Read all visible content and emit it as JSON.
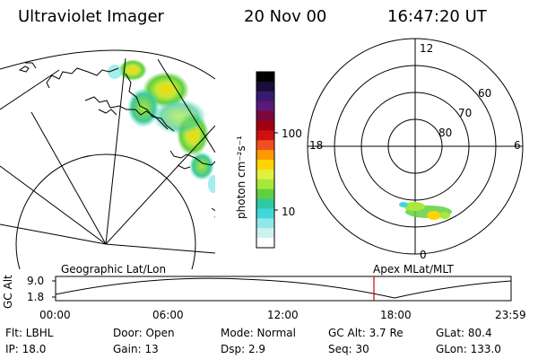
{
  "header": {
    "instrument": "Ultraviolet Imager",
    "date": "20 Nov 00",
    "time": "16:47:20 UT"
  },
  "colorbar": {
    "label": "photon cm⁻²s⁻¹",
    "ticks": [
      "100",
      "10"
    ],
    "colors": [
      "#000000",
      "#1a0d3a",
      "#3a1a6e",
      "#5a1a7a",
      "#7a0a3a",
      "#a00010",
      "#d01010",
      "#f05020",
      "#ff9a00",
      "#ffd400",
      "#e0f040",
      "#a8e838",
      "#60d040",
      "#30c8a0",
      "#40d8d8",
      "#90e8e8",
      "#d0f0f0",
      "#ffffff"
    ]
  },
  "polar_plot": {
    "mlt_labels": {
      "top": "12",
      "left": "18",
      "right": "6",
      "bottom": "0"
    },
    "lat_labels": [
      "60",
      "70",
      "80"
    ]
  },
  "timeline": {
    "left_label": "Geographic Lat/Lon",
    "right_label": "Apex MLat/MLT",
    "axis_label": "GC Alt",
    "y_ticks": [
      "9.0",
      "1.8"
    ],
    "x_ticks": [
      "00:00",
      "06:00",
      "12:00",
      "18:00",
      "23:59"
    ],
    "marker_color": "#d00000"
  },
  "info": {
    "flt": "Flt: LBHL",
    "door": "Door: Open",
    "mode": "Mode: Normal",
    "gcalt": "GC Alt: 3.7 Re",
    "glat": "GLat:  80.4",
    "ip": "IP: 18.0",
    "gain": "Gain: 13",
    "dsp": "Dsp:      2.9",
    "seq": "Seq: 30",
    "glon": "GLon: 133.0"
  }
}
